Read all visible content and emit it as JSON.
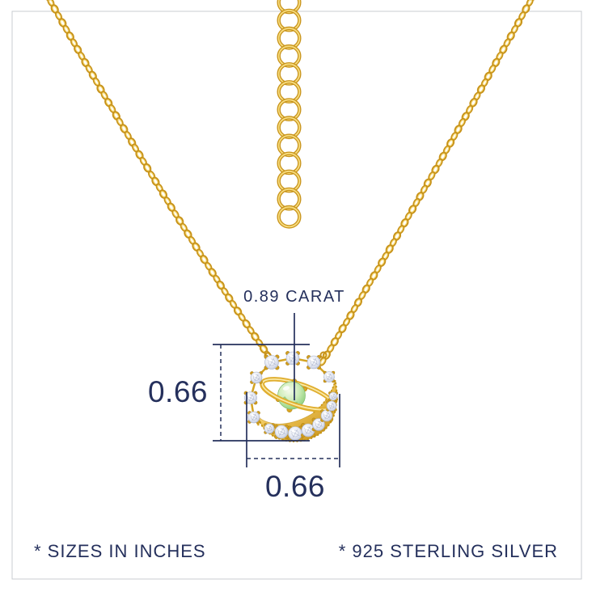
{
  "page": {
    "background": "#FFFFFF",
    "border_color": "#C9CCD0"
  },
  "annotations": {
    "carat_label": "0.89 CARAT",
    "pendant_height_in": "0.66",
    "pendant_width_in": "0.66"
  },
  "footnotes": {
    "sizes": "* SIZES IN INCHES",
    "material": "* 925 STERLING SILVER"
  },
  "colors": {
    "navy": "#25305C",
    "gold_dark": "#C8931A",
    "gold_mid": "#E2B238",
    "gold_light": "#F7DC7E",
    "gold_pale": "#FCEFAF",
    "stone_white": "#F4F6FA",
    "stone_shade": "#C2CADF",
    "green_light": "#DDF2CF",
    "green_mid": "#A8DB94"
  }
}
